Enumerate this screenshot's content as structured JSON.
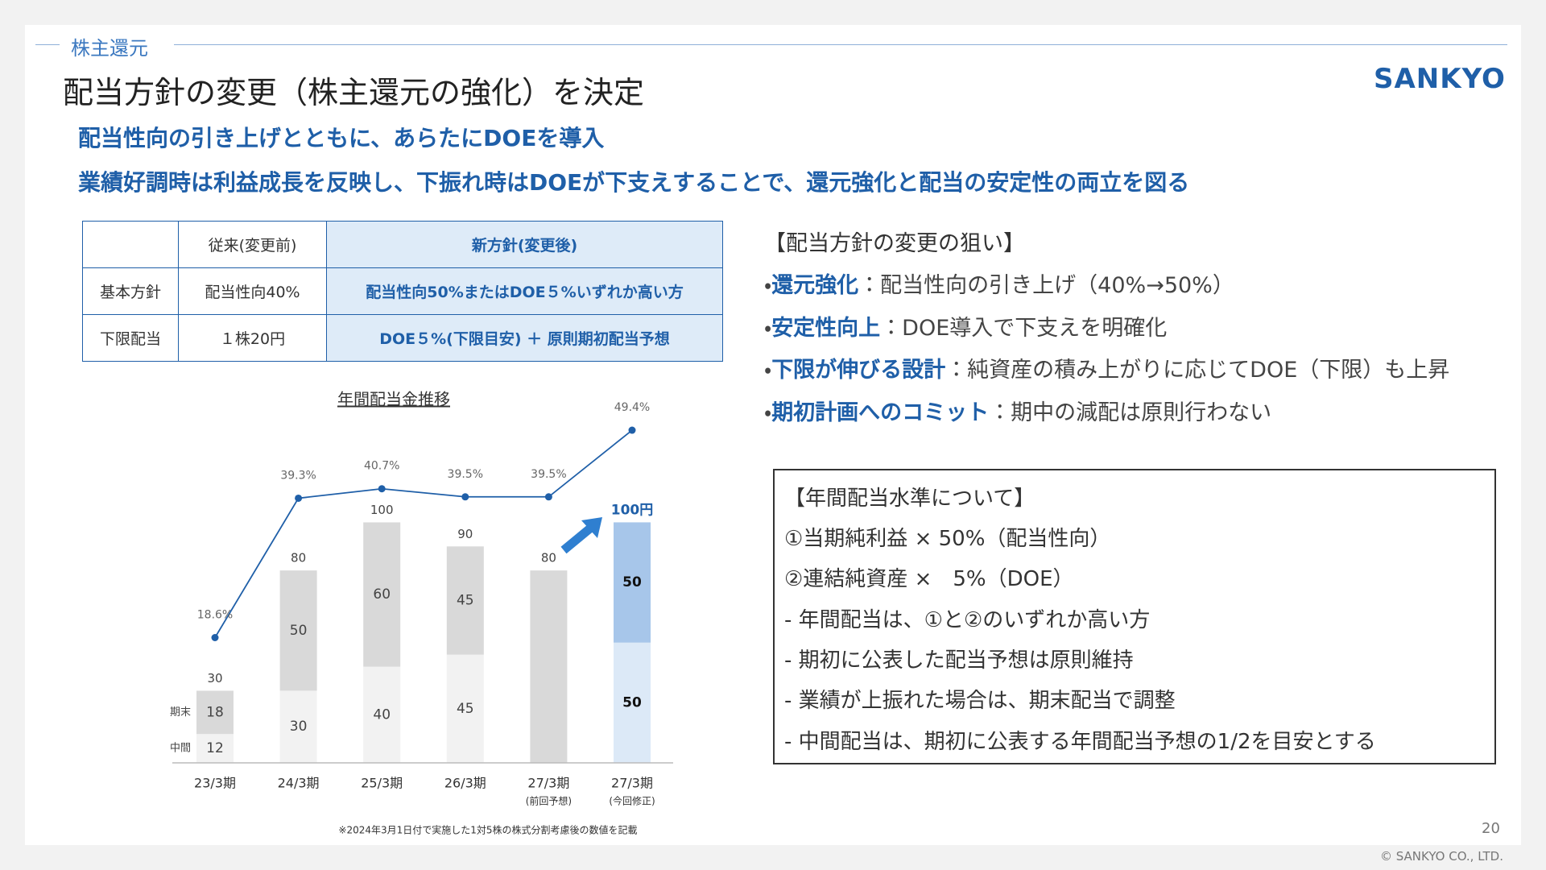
{
  "header": {
    "section": "株主還元",
    "title": "配当方針の変更（株主還元の強化）を決定",
    "logo": "SANKYO"
  },
  "lead": [
    "配当性向の引き上げとともに、あらたにDOEを導入",
    "業績好調時は利益成長を反映し、下振れ時はDOEが下支えすることで、還元強化と配当の安定性の両立を図る"
  ],
  "table": {
    "header": [
      null,
      "従来(変更前)",
      "新方針(変更後)"
    ],
    "rows": [
      [
        "基本方針",
        "配当性向40%",
        "配当性向50%またはDOE５%いずれか高い方"
      ],
      [
        "下限配当",
        "１株20円",
        "DOE５%(下限目安) ＋ 原則期初配当予想"
      ]
    ]
  },
  "aims": {
    "heading": "【配当方針の変更の狙い】",
    "bullet": "・",
    "items": [
      {
        "term": "還元強化",
        "text": "：配当性向の引き上げ（40%→50%）"
      },
      {
        "term": "安定性向上",
        "text": "：DOE導入で下支えを明確化"
      },
      {
        "term": "下限が伸びる設計",
        "text": "：純資産の積み上がりに応じてDOE（下限）も上昇"
      },
      {
        "term": "期初計画へのコミット",
        "text": "：期中の減配は原則行わない"
      }
    ]
  },
  "box": {
    "heading": "【年間配当水準について】",
    "lines": [
      "①当期純利益 × 50%（配当性向）",
      "②連結純資産 ×　5%（DOE）",
      "- 年間配当は、①と②のいずれか高い方",
      "- 期初に公表した配当予想は原則維持",
      "- 業績が上振れた場合は、期末配当で調整",
      "- 中間配当は、期初に公表する年間配当予想の1/2を目安とする"
    ]
  },
  "chart_data": {
    "type": "bar",
    "title": "年間配当金推移",
    "categories": [
      "23/3期",
      "24/3期",
      "25/3期",
      "26/3期",
      "27/3期",
      "27/3期"
    ],
    "category_sublabels": [
      null,
      null,
      null,
      null,
      "(前回予想)",
      "(今回修正)"
    ],
    "ylim": [
      0,
      140
    ],
    "y2lim": [
      0,
      50
    ],
    "series": [
      {
        "name": "中間",
        "colors": [
          "#f2f2f2",
          "#f2f2f2",
          "#f2f2f2",
          "#f2f2f2",
          null,
          "#dce9f7"
        ],
        "values": [
          12,
          30,
          40,
          45,
          null,
          50
        ]
      },
      {
        "name": "期末",
        "colors": [
          "#d9d9d9",
          "#d9d9d9",
          "#d9d9d9",
          "#d9d9d9",
          null,
          "#a7c6ea"
        ],
        "values": [
          18,
          50,
          60,
          45,
          null,
          50
        ]
      }
    ],
    "totals": {
      "color": "#d9d9d9",
      "values": [
        30,
        80,
        100,
        90,
        80,
        100
      ],
      "value_labels": [
        "30",
        "80",
        "100",
        "90",
        "80",
        "100円"
      ]
    },
    "payout": {
      "type": "line",
      "axis": "y2",
      "color": "#1f5fa8",
      "values": [
        18.6,
        39.3,
        40.7,
        39.5,
        39.5,
        49.4
      ],
      "value_labels": [
        "18.6%",
        "39.3%",
        "40.7%",
        "39.5%",
        "39.5%",
        "49.4%"
      ]
    },
    "note": "※2024年3月1日付で実施した1対5株の株式分割考慮後の数値を記載"
  },
  "footer": {
    "page": "20",
    "copyright": "© SANKYO CO., LTD."
  }
}
